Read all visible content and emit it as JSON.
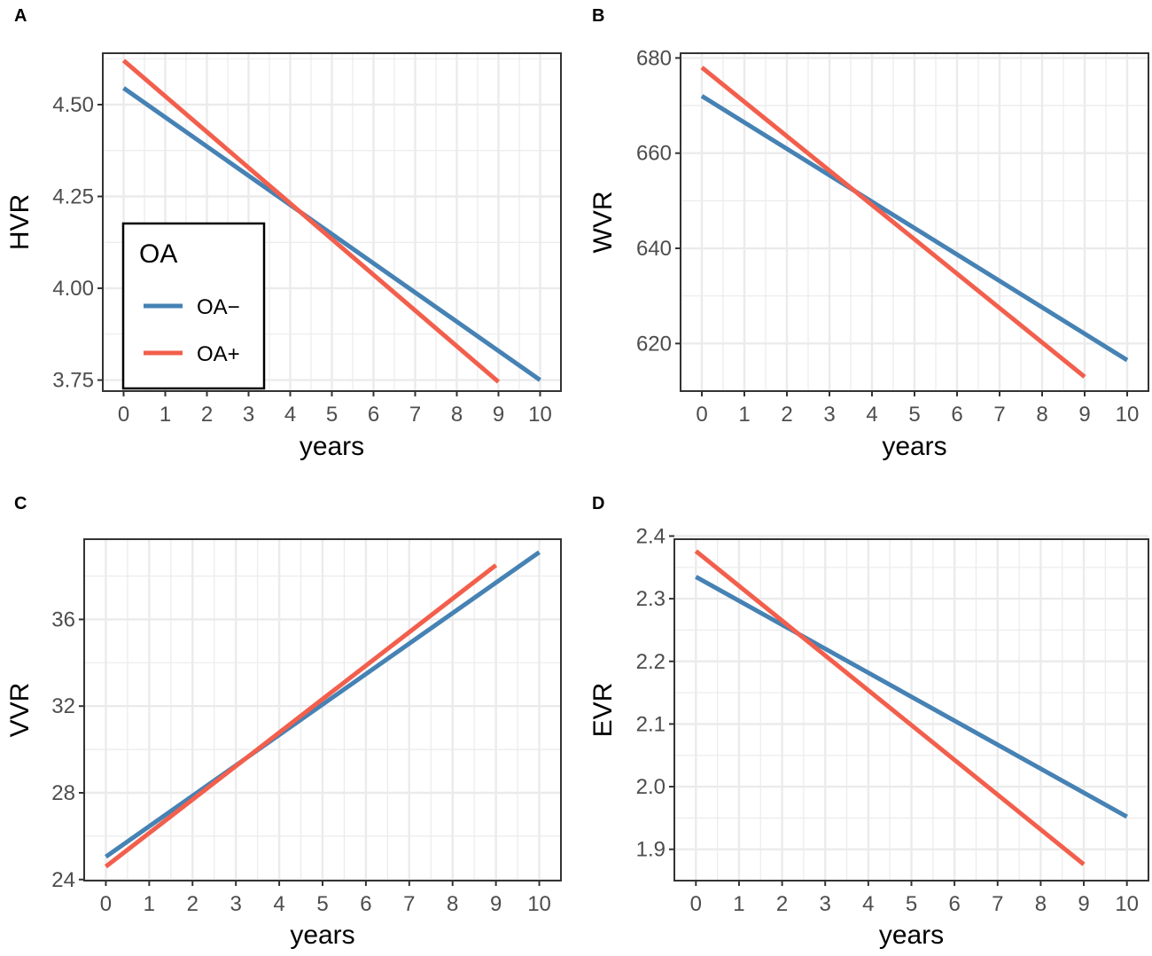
{
  "colors": {
    "oa_minus": "#4682b4",
    "oa_plus": "#f25f4c",
    "grid": "#ebebeb",
    "frame": "#333333"
  },
  "chart_data": [
    {
      "panel": "A",
      "type": "line",
      "xlabel": "years",
      "ylabel": "HVR",
      "xlim": [
        -0.5,
        10.5
      ],
      "ylim": [
        3.72,
        4.64
      ],
      "xticks": [
        0,
        1,
        2,
        3,
        4,
        5,
        6,
        7,
        8,
        9,
        10
      ],
      "yticks": [
        3.75,
        4.0,
        4.25,
        4.5
      ],
      "ytick_labels": [
        "3.75",
        "4.00",
        "4.25",
        "4.50"
      ],
      "series": [
        {
          "name": "OA−",
          "x": [
            0,
            10
          ],
          "y": [
            4.545,
            3.75
          ]
        },
        {
          "name": "OA+",
          "x": [
            0,
            9
          ],
          "y": [
            4.62,
            3.745
          ]
        }
      ],
      "legend": {
        "title": "OA",
        "position": "bottom-left",
        "entries": [
          "OA−",
          "OA+"
        ]
      }
    },
    {
      "panel": "B",
      "type": "line",
      "xlabel": "years",
      "ylabel": "WVR",
      "xlim": [
        -0.5,
        10.5
      ],
      "ylim": [
        610,
        681
      ],
      "xticks": [
        0,
        1,
        2,
        3,
        4,
        5,
        6,
        7,
        8,
        9,
        10
      ],
      "yticks": [
        620,
        640,
        660,
        680
      ],
      "ytick_labels": [
        "620",
        "640",
        "660",
        "680"
      ],
      "series": [
        {
          "name": "OA−",
          "x": [
            0,
            10
          ],
          "y": [
            672,
            616.5
          ]
        },
        {
          "name": "OA+",
          "x": [
            0,
            9
          ],
          "y": [
            678,
            613
          ]
        }
      ]
    },
    {
      "panel": "C",
      "type": "line",
      "xlabel": "years",
      "ylabel": "VVR",
      "xlim": [
        -0.5,
        10.5
      ],
      "ylim": [
        23.95,
        39.7
      ],
      "xticks": [
        0,
        1,
        2,
        3,
        4,
        5,
        6,
        7,
        8,
        9,
        10
      ],
      "yticks": [
        24,
        28,
        32,
        36
      ],
      "ytick_labels": [
        "24",
        "28",
        "32",
        "36"
      ],
      "series": [
        {
          "name": "OA−",
          "x": [
            0,
            10
          ],
          "y": [
            25.05,
            39.1
          ]
        },
        {
          "name": "OA+",
          "x": [
            0,
            9
          ],
          "y": [
            24.6,
            38.5
          ]
        }
      ]
    },
    {
      "panel": "D",
      "type": "line",
      "xlabel": "years",
      "ylabel": "EVR",
      "xlim": [
        -0.5,
        10.5
      ],
      "ylim": [
        1.85,
        2.395
      ],
      "xticks": [
        0,
        1,
        2,
        3,
        4,
        5,
        6,
        7,
        8,
        9,
        10
      ],
      "yticks": [
        1.9,
        2.0,
        2.1,
        2.2,
        2.3,
        2.4
      ],
      "ytick_labels": [
        "1.9",
        "2.0",
        "2.1",
        "2.2",
        "2.3",
        "2.4"
      ],
      "series": [
        {
          "name": "OA−",
          "x": [
            0,
            10
          ],
          "y": [
            2.335,
            1.952
          ]
        },
        {
          "name": "OA+",
          "x": [
            0,
            9
          ],
          "y": [
            2.376,
            1.876
          ]
        }
      ]
    }
  ]
}
